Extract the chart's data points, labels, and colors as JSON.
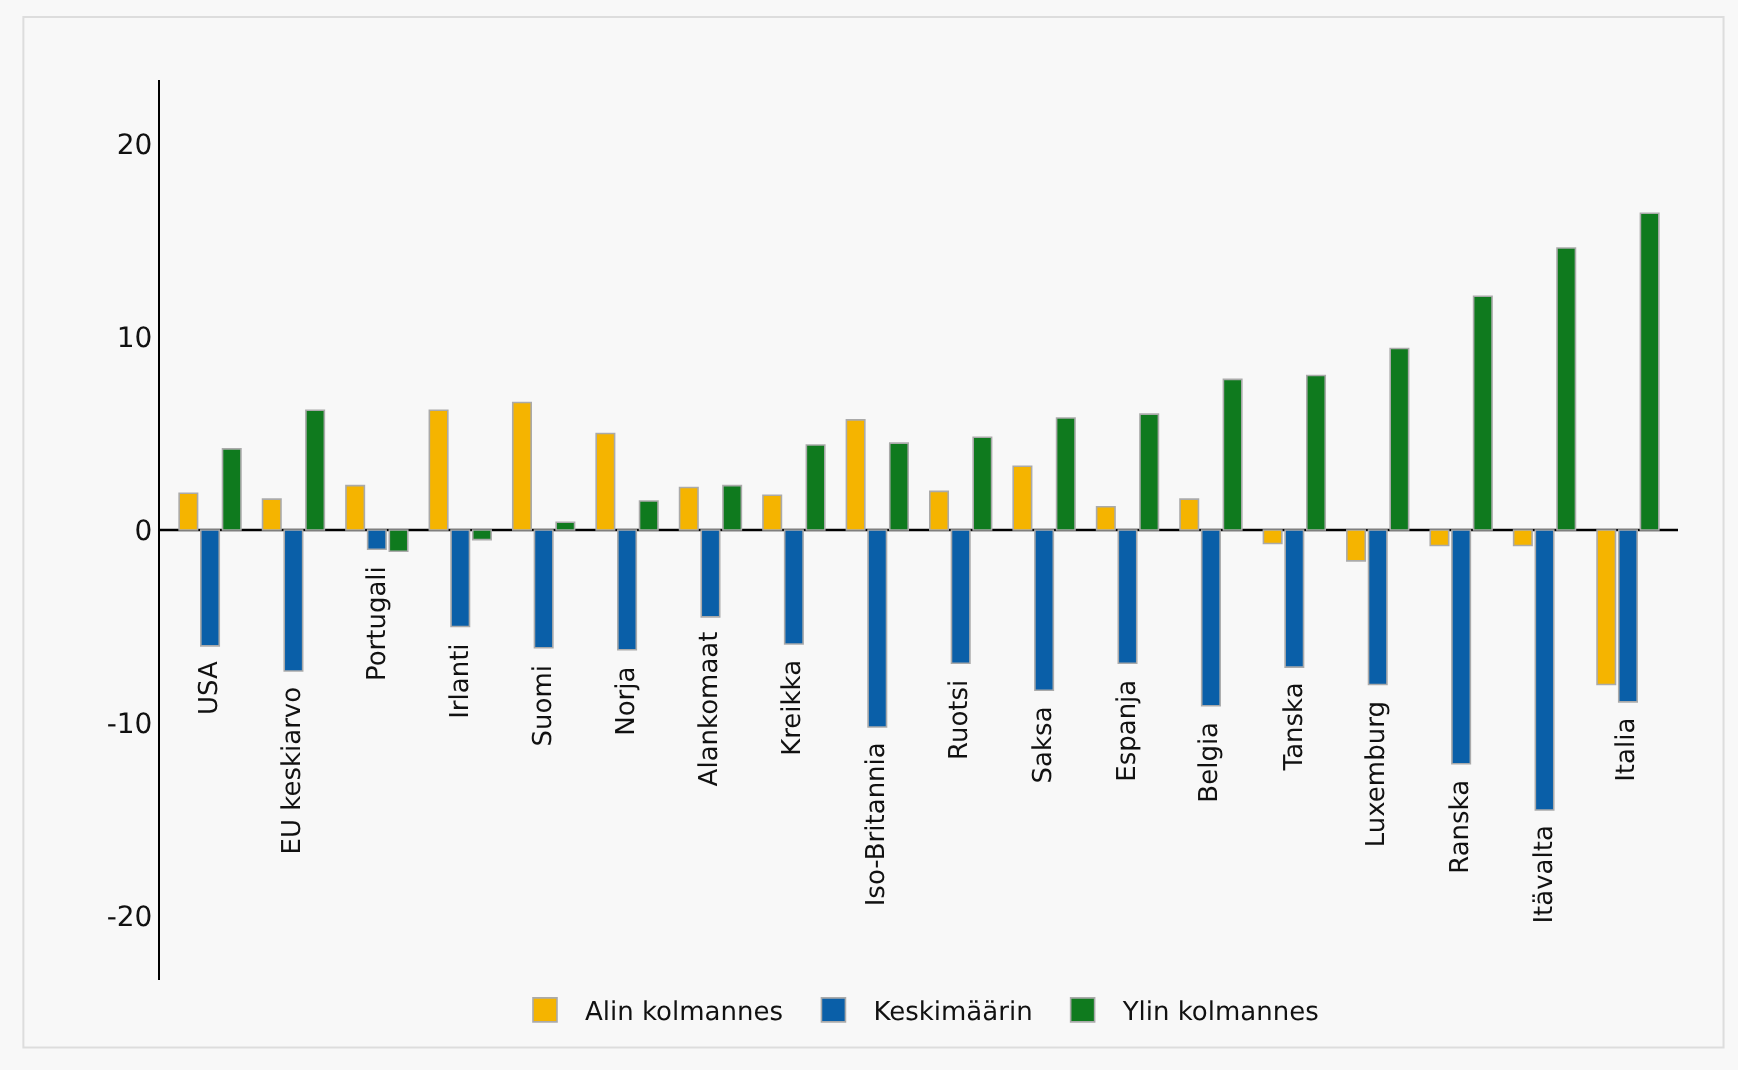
{
  "chart_data": {
    "type": "bar",
    "categories": [
      "USA",
      "EU keskiarvo",
      "Portugali",
      "Irlanti",
      "Suomi",
      "Norja",
      "Alankomaat",
      "Kreikka",
      "Iso-Britannia",
      "Ruotsi",
      "Saksa",
      "Espanja",
      "Belgia",
      "Tanska",
      "Luxemburg",
      "Ranska",
      "Itävalta",
      "Italia"
    ],
    "series": [
      {
        "name": "Alin kolmannes",
        "color": "#f5b400",
        "values": [
          1.9,
          1.6,
          2.3,
          6.2,
          6.6,
          5.0,
          2.2,
          1.8,
          5.7,
          2.0,
          3.3,
          1.2,
          1.6,
          -0.7,
          -1.6,
          -0.8,
          -0.8,
          -8.0
        ]
      },
      {
        "name": "Keskimäärin",
        "color": "#0a5fa8",
        "values": [
          -6.0,
          -7.3,
          -1.0,
          -5.0,
          -6.1,
          -6.2,
          -4.5,
          -5.9,
          -10.2,
          -6.9,
          -8.3,
          -6.9,
          -9.1,
          -7.1,
          -8.0,
          -12.1,
          -14.5,
          -8.9
        ]
      },
      {
        "name": "Ylin kolmannes",
        "color": "#0f7a1e",
        "values": [
          4.2,
          6.2,
          -1.1,
          -0.5,
          0.4,
          1.5,
          2.3,
          4.4,
          4.5,
          4.8,
          5.8,
          6.0,
          7.8,
          8.0,
          9.4,
          12.1,
          14.6,
          16.4
        ]
      }
    ],
    "ylim": [
      -23.3,
      23.3
    ],
    "yticks": [
      -20,
      -10,
      0,
      10,
      20
    ],
    "legend": "bottom"
  }
}
